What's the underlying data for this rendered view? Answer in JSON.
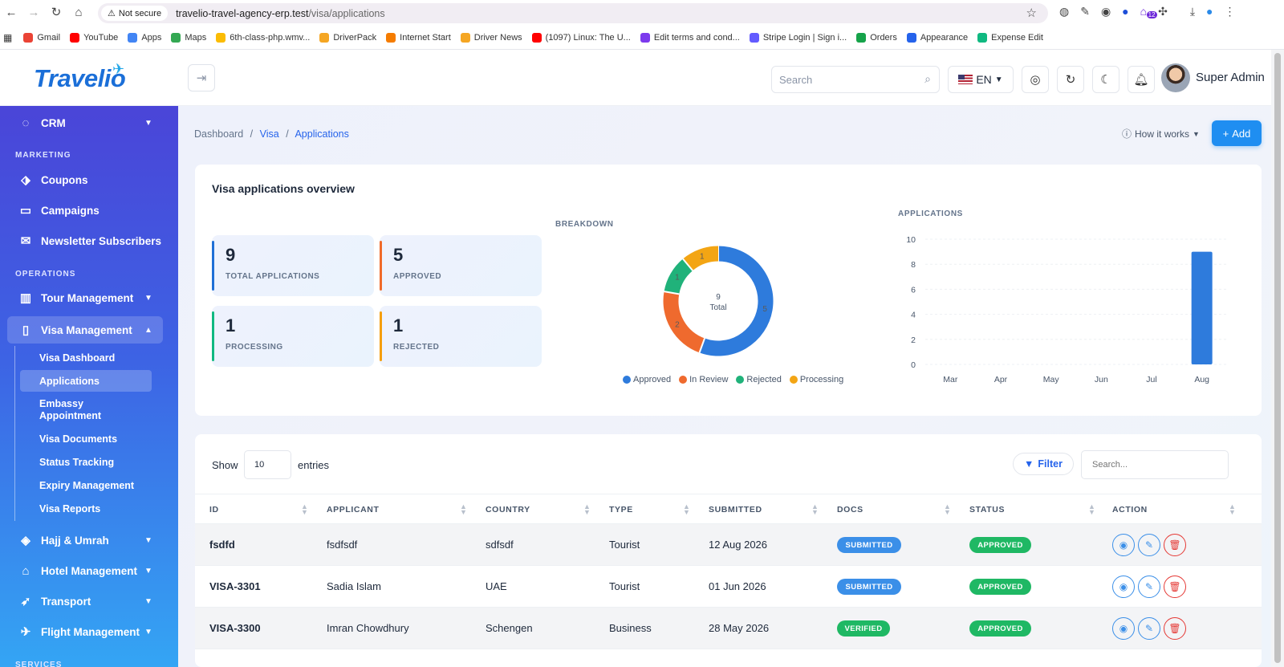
{
  "browser": {
    "not_secure": "Not secure",
    "url_host": "travelio-travel-agency-erp.test",
    "url_path": "/visa/applications",
    "ext_badge": "12",
    "bookmarks": [
      {
        "label": "Gmail",
        "color": "#ea4335"
      },
      {
        "label": "YouTube",
        "color": "#ff0000"
      },
      {
        "label": "Apps",
        "color": "#4285f4"
      },
      {
        "label": "Maps",
        "color": "#34a853"
      },
      {
        "label": "6th-class-php.wmv...",
        "color": "#fbbc04"
      },
      {
        "label": "DriverPack",
        "color": "#f5a623"
      },
      {
        "label": "Internet Start",
        "color": "#f57c00"
      },
      {
        "label": "Driver News",
        "color": "#f5a623"
      },
      {
        "label": "(1097) Linux: The U...",
        "color": "#ff0000"
      },
      {
        "label": "Edit terms and cond...",
        "color": "#7c3aed"
      },
      {
        "label": "Stripe Login | Sign i...",
        "color": "#635bff"
      },
      {
        "label": "Orders",
        "color": "#16a34a"
      },
      {
        "label": "Appearance",
        "color": "#2563eb"
      },
      {
        "label": "Expense Edit",
        "color": "#10b981"
      }
    ]
  },
  "header": {
    "logo": "Travelio",
    "search_placeholder": "Search",
    "lang": "EN",
    "user_name": "Super Admin"
  },
  "sidebar": {
    "crm": "CRM",
    "marketing_title": "MARKETING",
    "coupons": "Coupons",
    "campaigns": "Campaigns",
    "newsletter": "Newsletter Subscribers",
    "operations_title": "OPERATIONS",
    "tour": "Tour Management",
    "visa": "Visa Management",
    "visa_sub": [
      "Visa Dashboard",
      "Applications",
      "Embassy Appointment",
      "Visa Documents",
      "Status Tracking",
      "Expiry Management",
      "Visa Reports"
    ],
    "hajj": "Hajj & Umrah",
    "hotel": "Hotel Management",
    "transport": "Transport",
    "flight": "Flight Management",
    "services_title": "SERVICES"
  },
  "breadcrumb": {
    "home": "Dashboard",
    "sep": "/",
    "section": "Visa",
    "current": "Applications"
  },
  "how_it_works": "How it works",
  "add_label": "Add",
  "overview": {
    "title": "Visa applications overview",
    "stats": [
      {
        "value": "9",
        "label": "TOTAL APPLICATIONS",
        "color": "#1f6fd6"
      },
      {
        "value": "5",
        "label": "APPROVED",
        "color": "#f06a2a"
      },
      {
        "value": "1",
        "label": "PROCESSING",
        "color": "#10b981"
      },
      {
        "value": "1",
        "label": "REJECTED",
        "color": "#f59e0b"
      }
    ],
    "breakdown_title": "BREAKDOWN",
    "applications_title": "APPLICATIONS",
    "donut_total": "9",
    "donut_total_label": "Total"
  },
  "chart_data": [
    {
      "type": "pie",
      "title": "BREAKDOWN",
      "categories": [
        "Approved",
        "In Review",
        "Rejected",
        "Processing"
      ],
      "values": [
        5,
        2,
        1,
        1
      ],
      "colors": [
        "#2e7bdc",
        "#ef6a2e",
        "#20b27a",
        "#f3a514"
      ]
    },
    {
      "type": "bar",
      "title": "APPLICATIONS",
      "categories": [
        "Mar",
        "Apr",
        "May",
        "Jun",
        "Jul",
        "Aug"
      ],
      "values": [
        0,
        0,
        0,
        0,
        0,
        9
      ],
      "ylim": [
        0,
        10
      ],
      "yticks": [
        "0",
        "2",
        "4",
        "6",
        "8",
        "10"
      ],
      "color": "#2e7bdc",
      "grid": true
    }
  ],
  "table": {
    "show": "Show",
    "entries_value": "10",
    "entries": "entries",
    "filter": "Filter",
    "search_placeholder": "Search...",
    "columns": [
      "ID",
      "APPLICANT",
      "COUNTRY",
      "TYPE",
      "SUBMITTED",
      "DOCS",
      "STATUS",
      "ACTION"
    ],
    "rows": [
      {
        "id": "fsdfd",
        "applicant": "fsdfsdf",
        "country": "sdfsdf",
        "type": "Tourist",
        "submitted": "12 Aug 2026",
        "docs": "SUBMITTED",
        "status": "APPROVED"
      },
      {
        "id": "VISA-3301",
        "applicant": "Sadia Islam",
        "country": "UAE",
        "type": "Tourist",
        "submitted": "01 Jun 2026",
        "docs": "SUBMITTED",
        "status": "APPROVED"
      },
      {
        "id": "VISA-3300",
        "applicant": "Imran Chowdhury",
        "country": "Schengen",
        "type": "Business",
        "submitted": "28 May 2026",
        "docs": "VERIFIED",
        "status": "APPROVED"
      }
    ]
  }
}
